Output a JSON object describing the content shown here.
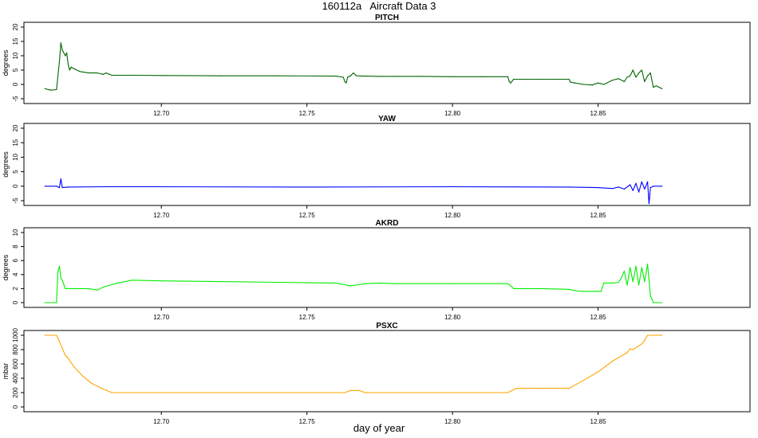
{
  "title": "160112a   Aircraft Data 3",
  "xlabel": "day of year",
  "chart_data": [
    {
      "type": "line",
      "title": "PITCH",
      "ylabel": "degrees",
      "color": "#006400",
      "xlim": [
        12.655,
        12.9
      ],
      "ylim": [
        -5,
        20
      ],
      "xticks": [
        "12.70",
        "12.75",
        "12.80",
        "12.85"
      ],
      "yticks": [
        "-5",
        "0",
        "5",
        "10",
        "15",
        "20"
      ],
      "series": [
        {
          "x": [
            12.66,
            12.662,
            12.664,
            12.665,
            12.6655,
            12.666,
            12.667,
            12.6675,
            12.668,
            12.6685,
            12.669,
            12.67,
            12.672,
            12.675,
            12.678,
            12.68,
            12.681,
            12.683,
            12.69,
            12.7,
            12.72,
            12.74,
            12.76,
            12.7625,
            12.763,
            12.7635,
            12.764,
            12.765,
            12.766,
            12.767,
            12.77,
            12.775,
            12.78,
            12.79,
            12.8,
            12.81,
            12.819,
            12.8195,
            12.82,
            12.821,
            12.825,
            12.83,
            12.835,
            12.84,
            12.8405,
            12.842,
            12.845,
            12.848,
            12.85,
            12.852,
            12.855,
            12.857,
            12.859,
            12.86,
            12.861,
            12.862,
            12.863,
            12.864,
            12.865,
            12.866,
            12.867,
            12.868,
            12.869,
            12.87,
            12.871,
            12.872
          ],
          "y": [
            -1.5,
            -2,
            -1.8,
            8,
            14.5,
            12,
            10,
            11,
            7,
            5,
            6,
            5.5,
            4.5,
            4,
            4,
            3.5,
            4,
            3.2,
            3.2,
            3.1,
            3,
            3,
            2.9,
            2.5,
            1,
            0.5,
            2.5,
            3,
            4,
            3,
            2.9,
            2.8,
            2.8,
            2.8,
            2.7,
            2.7,
            2.7,
            1,
            0.5,
            1.8,
            1.8,
            1.8,
            1.8,
            1.8,
            0.8,
            0.5,
            0,
            -0.2,
            0.5,
            0,
            1.5,
            2,
            1,
            2.5,
            3,
            5,
            2.5,
            4,
            5,
            1,
            3,
            4,
            -1,
            -0.5,
            -1,
            -1.5
          ]
        }
      ]
    },
    {
      "type": "line",
      "title": "YAW",
      "ylabel": "degrees",
      "color": "#0000ff",
      "xlim": [
        12.655,
        12.9
      ],
      "ylim": [
        -5,
        20
      ],
      "xticks": [
        "12.70",
        "12.75",
        "12.80",
        "12.85"
      ],
      "yticks": [
        "-5",
        "0",
        "5",
        "10",
        "15",
        "20"
      ],
      "series": [
        {
          "x": [
            12.66,
            12.664,
            12.665,
            12.6655,
            12.666,
            12.668,
            12.68,
            12.7,
            12.75,
            12.8,
            12.84,
            12.85,
            12.855,
            12.857,
            12.859,
            12.861,
            12.862,
            12.863,
            12.864,
            12.865,
            12.866,
            12.867,
            12.8675,
            12.868,
            12.869,
            12.872
          ],
          "y": [
            0,
            0,
            -0.5,
            2.5,
            -0.5,
            -0.3,
            -0.2,
            -0.2,
            -0.3,
            -0.2,
            -0.3,
            -0.5,
            -0.8,
            -0.3,
            -1,
            0.5,
            -1.5,
            1,
            -2,
            1.5,
            -1,
            1.5,
            -6,
            -0.5,
            0,
            0
          ]
        }
      ]
    },
    {
      "type": "line",
      "title": "AKRD",
      "ylabel": "degrees",
      "color": "#00ee00",
      "xlim": [
        12.655,
        12.9
      ],
      "ylim": [
        0,
        10
      ],
      "xticks": [
        "12.70",
        "12.75",
        "12.80",
        "12.85"
      ],
      "yticks": [
        "0",
        "2",
        "4",
        "6",
        "8",
        "10"
      ],
      "series": [
        {
          "x": [
            12.66,
            12.663,
            12.664,
            12.6645,
            12.665,
            12.6655,
            12.666,
            12.667,
            12.67,
            12.675,
            12.678,
            12.68,
            12.685,
            12.69,
            12.7,
            12.72,
            12.74,
            12.76,
            12.765,
            12.77,
            12.775,
            12.78,
            12.8,
            12.819,
            12.82,
            12.821,
            12.825,
            12.83,
            12.84,
            12.842,
            12.845,
            12.85,
            12.851,
            12.852,
            12.855,
            12.857,
            12.858,
            12.859,
            12.86,
            12.861,
            12.862,
            12.863,
            12.864,
            12.865,
            12.866,
            12.867,
            12.868,
            12.869,
            12.87,
            12.872
          ],
          "y": [
            0,
            0,
            0,
            4.5,
            5.2,
            3.5,
            3.2,
            2,
            2,
            2,
            1.8,
            2.2,
            2.8,
            3.2,
            3.1,
            3,
            2.9,
            2.8,
            2.4,
            2.7,
            2.8,
            2.7,
            2.7,
            2.7,
            2.4,
            2.0,
            2.0,
            2.0,
            1.9,
            1.7,
            1.6,
            1.6,
            1.6,
            2.8,
            2.8,
            2.9,
            3.5,
            4.5,
            2.5,
            5,
            3,
            5.2,
            2.5,
            5,
            3,
            5.5,
            1,
            0,
            0,
            0
          ]
        }
      ]
    },
    {
      "type": "line",
      "title": "PSXC",
      "ylabel": "mbar",
      "color": "#ffa500",
      "xlim": [
        12.655,
        12.9
      ],
      "ylim": [
        0,
        1000
      ],
      "xticks": [
        "12.70",
        "12.75",
        "12.80",
        "12.85"
      ],
      "yticks": [
        "0",
        "200",
        "400",
        "600",
        "800",
        "1000"
      ],
      "series": [
        {
          "x": [
            12.66,
            12.664,
            12.666,
            12.667,
            12.668,
            12.67,
            12.673,
            12.676,
            12.68,
            12.683,
            12.69,
            12.7,
            12.72,
            12.74,
            12.76,
            12.763,
            12.765,
            12.767,
            12.768,
            12.77,
            12.79,
            12.81,
            12.819,
            12.822,
            12.83,
            12.84,
            12.845,
            12.85,
            12.855,
            12.86,
            12.861,
            12.862,
            12.865,
            12.866,
            12.867,
            12.869,
            12.87,
            12.872
          ],
          "y": [
            1000,
            1000,
            820,
            720,
            680,
            560,
            430,
            330,
            250,
            200,
            200,
            200,
            200,
            200,
            200,
            200,
            230,
            230,
            230,
            200,
            200,
            200,
            200,
            260,
            260,
            260,
            370,
            490,
            640,
            760,
            810,
            800,
            880,
            930,
            1000,
            1000,
            1000,
            1000
          ]
        }
      ]
    }
  ]
}
